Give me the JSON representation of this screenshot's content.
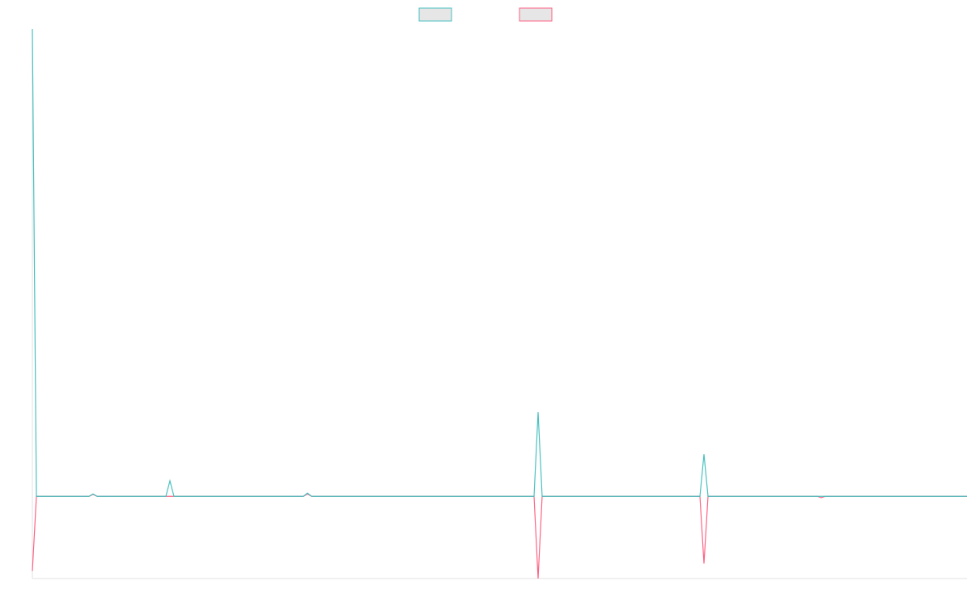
{
  "chart_data": {
    "type": "line",
    "x": [
      0,
      1,
      14,
      15,
      16,
      33,
      34,
      35,
      67,
      68,
      69,
      124,
      125,
      126,
      165,
      166,
      167,
      194,
      195,
      196,
      231
    ],
    "series": [
      {
        "color": "#4bc0c0",
        "values": [
          100,
          0,
          0,
          0.5,
          0,
          0,
          3.3,
          0,
          0,
          0.7,
          0,
          0,
          18,
          0,
          0,
          9,
          0,
          0,
          0,
          0,
          0
        ]
      },
      {
        "color": "#ff6384",
        "values": [
          -16,
          0,
          0,
          0.4,
          0,
          0,
          0,
          0,
          0,
          0.5,
          0,
          0,
          -17.6,
          0,
          0,
          -14.4,
          0,
          0,
          -0.3,
          0,
          0
        ]
      }
    ],
    "xlim": [
      0,
      231
    ],
    "ylim": [
      -17.6,
      100
    ],
    "legend": "top"
  }
}
